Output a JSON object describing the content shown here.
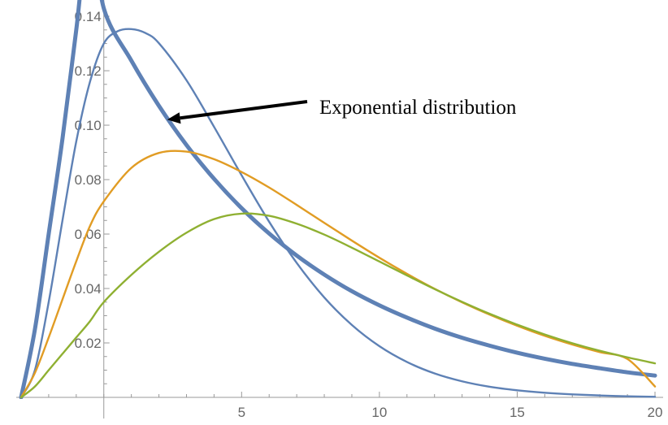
{
  "chart_data": {
    "type": "line",
    "title": "",
    "xlabel": "",
    "ylabel": "",
    "xlim": [
      -3,
      20
    ],
    "ylim": [
      0,
      0.143
    ],
    "x_ticks": [
      5,
      10,
      15,
      20
    ],
    "x_tick_labels": [
      "5",
      "10",
      "15",
      "20"
    ],
    "y_ticks": [
      0.02,
      0.04,
      0.06,
      0.08,
      0.1,
      0.12,
      0.14
    ],
    "y_tick_labels": [
      "0.02",
      "0.04",
      "0.06",
      "0.08",
      "0.10",
      "0.12",
      "0.14"
    ],
    "grid": false,
    "legend": "none",
    "series": [
      {
        "color": "#5e81b5",
        "emphasis": "thick",
        "x": [
          -3,
          -2.5,
          -2,
          -1.5,
          -1,
          -0.5,
          0,
          1,
          2,
          3,
          4,
          5,
          6,
          7,
          8,
          9,
          10,
          11,
          12,
          13,
          14,
          15,
          16,
          17,
          18,
          19,
          20
        ],
        "y": [
          0,
          0.025,
          0.06,
          0.095,
          0.135,
          0.175,
          0.1429,
          0.1237,
          0.1071,
          0.0927,
          0.0803,
          0.0695,
          0.0602,
          0.0521,
          0.0451,
          0.039,
          0.0338,
          0.0293,
          0.0253,
          0.0219,
          0.019,
          0.0164,
          0.0142,
          0.0123,
          0.0107,
          0.0092,
          0.008
        ]
      },
      {
        "color": "#5e81b5",
        "x": [
          -3,
          -2.5,
          -2,
          -1.5,
          -1,
          -0.5,
          0,
          0.5,
          1,
          1.5,
          2,
          3,
          4,
          5,
          6,
          7,
          8,
          9,
          10,
          11,
          12,
          13,
          14,
          15,
          16,
          17,
          18,
          19,
          20
        ],
        "y": [
          0,
          0.01,
          0.035,
          0.065,
          0.094,
          0.116,
          0.13,
          0.1345,
          0.1353,
          0.1339,
          0.1301,
          0.1165,
          0.0994,
          0.0816,
          0.0645,
          0.0494,
          0.0367,
          0.0266,
          0.0188,
          0.013,
          0.0088,
          0.0059,
          0.0039,
          0.0026,
          0.0017,
          0.0011,
          0.0007,
          0.0004,
          0.0002
        ]
      },
      {
        "color": "#e19c24",
        "x": [
          -3,
          -2.5,
          -2,
          -1.5,
          -1,
          -0.5,
          0,
          1,
          2,
          3,
          4,
          5,
          6,
          7,
          8,
          9,
          10,
          11,
          12,
          13,
          14,
          15,
          16,
          17,
          18,
          19,
          20
        ],
        "y": [
          0,
          0.009,
          0.022,
          0.036,
          0.05,
          0.063,
          0.072,
          0.0843,
          0.0898,
          0.0903,
          0.0875,
          0.0828,
          0.0771,
          0.0707,
          0.0641,
          0.0576,
          0.0513,
          0.0454,
          0.0399,
          0.0349,
          0.0304,
          0.0263,
          0.0226,
          0.0194,
          0.0166,
          0.0141,
          0.004
        ]
      },
      {
        "color": "#8fb032",
        "x": [
          -3,
          -2.5,
          -2,
          -1.5,
          -1,
          -0.5,
          0,
          1,
          2,
          3,
          4,
          5,
          6,
          7,
          8,
          9,
          10,
          11,
          12,
          13,
          14,
          15,
          16,
          17,
          18,
          19,
          20
        ],
        "y": [
          0,
          0.004,
          0.01,
          0.016,
          0.022,
          0.028,
          0.035,
          0.045,
          0.0535,
          0.0605,
          0.0655,
          0.0675,
          0.0667,
          0.0638,
          0.0598,
          0.055,
          0.0499,
          0.0448,
          0.0398,
          0.0351,
          0.0307,
          0.0267,
          0.0231,
          0.0199,
          0.0171,
          0.0147,
          0.0125
        ]
      }
    ],
    "annotations": [
      {
        "text": "Exponential distribution",
        "arrow_to": [
          2.3,
          0.102
        ]
      }
    ]
  }
}
